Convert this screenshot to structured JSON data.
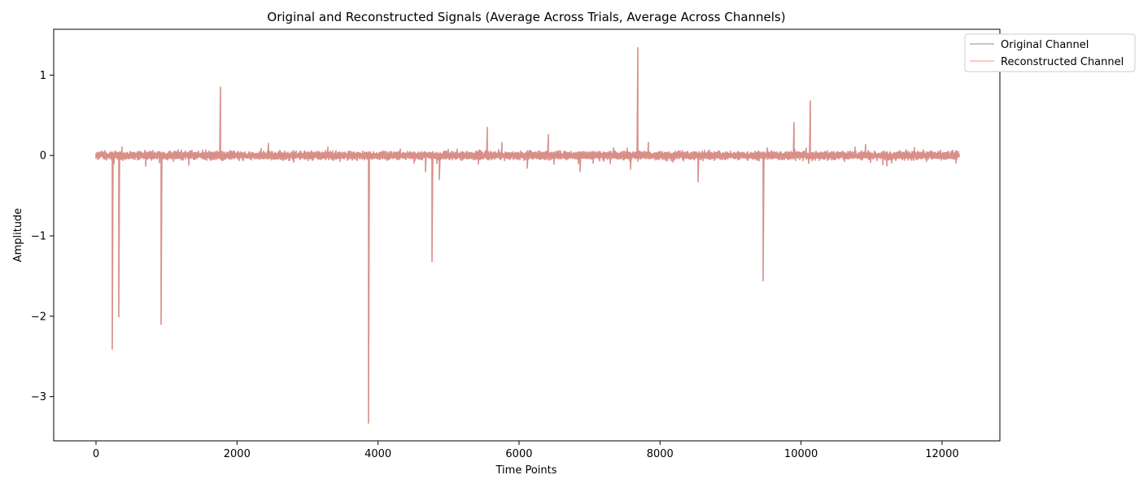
{
  "chart_data": {
    "type": "line",
    "title": "Original and Reconstructed Signals (Average Across Trials, Average Across Channels)",
    "xlabel": "Time Points",
    "ylabel": "Amplitude",
    "xlim": [
      -600,
      12820
    ],
    "ylim": [
      -3.55,
      1.57
    ],
    "xticks": [
      0,
      2000,
      4000,
      6000,
      8000,
      10000,
      12000
    ],
    "xtick_labels": [
      "0",
      "2000",
      "4000",
      "6000",
      "8000",
      "10000",
      "12000"
    ],
    "yticks": [
      -3,
      -2,
      -1,
      0,
      1
    ],
    "ytick_labels": [
      "−3",
      "−2",
      "−1",
      "0",
      "1"
    ],
    "grid": false,
    "legend_position": "top-right, outside plot",
    "n_points": 12240,
    "noise_amplitude": 0.04,
    "colors": {
      "original": "#808080",
      "reconstructed": "#ff6b5b",
      "overlap": "#c47b78"
    },
    "series": [
      {
        "name": "Original Channel",
        "color": "#808080",
        "opacity": 0.6
      },
      {
        "name": "Reconstructed Channel",
        "color": "#ff6b5b",
        "opacity": 0.5
      }
    ],
    "spikes": [
      {
        "x": 230,
        "y": -2.41
      },
      {
        "x": 320,
        "y": -2.01
      },
      {
        "x": 920,
        "y": -2.1
      },
      {
        "x": 1760,
        "y": 0.85
      },
      {
        "x": 2450,
        "y": 0.15
      },
      {
        "x": 3870,
        "y": -3.33
      },
      {
        "x": 4670,
        "y": -0.2
      },
      {
        "x": 4760,
        "y": -1.32
      },
      {
        "x": 4870,
        "y": -0.3
      },
      {
        "x": 5550,
        "y": 0.35
      },
      {
        "x": 5760,
        "y": 0.16
      },
      {
        "x": 6420,
        "y": 0.26
      },
      {
        "x": 6870,
        "y": -0.2
      },
      {
        "x": 7580,
        "y": -0.17
      },
      {
        "x": 7680,
        "y": 1.34
      },
      {
        "x": 7830,
        "y": 0.16
      },
      {
        "x": 8540,
        "y": -0.33
      },
      {
        "x": 9460,
        "y": -1.56
      },
      {
        "x": 9900,
        "y": 0.41
      },
      {
        "x": 10130,
        "y": 0.68
      }
    ]
  }
}
